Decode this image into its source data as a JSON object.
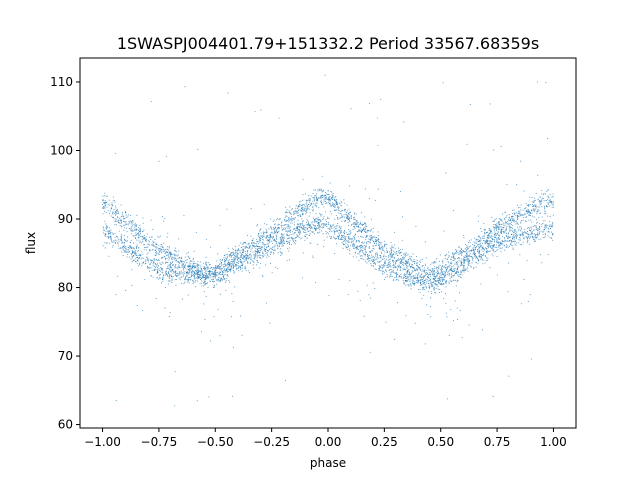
{
  "chart_data": {
    "type": "scatter",
    "title": "1SWASPJ004401.79+151332.2 Period 33567.68359s",
    "xlabel": "phase",
    "ylabel": "flux",
    "xlim": [
      -1.1,
      1.1
    ],
    "ylim": [
      59.5,
      113.5
    ],
    "xticks": [
      -1.0,
      -0.75,
      -0.5,
      -0.25,
      0.0,
      0.25,
      0.5,
      0.75,
      1.0
    ],
    "xtick_labels": [
      "−1.00",
      "−0.75",
      "−0.50",
      "−0.25",
      "0.00",
      "0.25",
      "0.50",
      "0.75",
      "1.00"
    ],
    "yticks": [
      60,
      70,
      80,
      90,
      100,
      110
    ],
    "ytick_labels": [
      "60",
      "70",
      "80",
      "90",
      "100",
      "110"
    ],
    "grid": false,
    "marker_color": "#1f77b4",
    "series": [
      {
        "phase_min": -1.0,
        "phase_max": 1.0,
        "flux_min": 62,
        "flux_max": 111,
        "profile_phase": [
          -1.0,
          -0.75,
          -0.55,
          -0.5,
          -0.25,
          -0.05,
          0.0,
          0.25,
          0.45,
          0.5,
          0.75,
          0.95,
          1.0
        ],
        "profile_flux_upper": [
          92.5,
          85.5,
          82.0,
          82.5,
          88.0,
          93.0,
          93.0,
          85.5,
          82.0,
          82.5,
          88.5,
          92.5,
          92.5
        ],
        "profile_flux_lower": [
          88.5,
          82.5,
          81.5,
          81.5,
          86.0,
          89.5,
          89.0,
          83.0,
          80.5,
          81.0,
          86.5,
          88.5,
          88.5
        ]
      }
    ]
  }
}
